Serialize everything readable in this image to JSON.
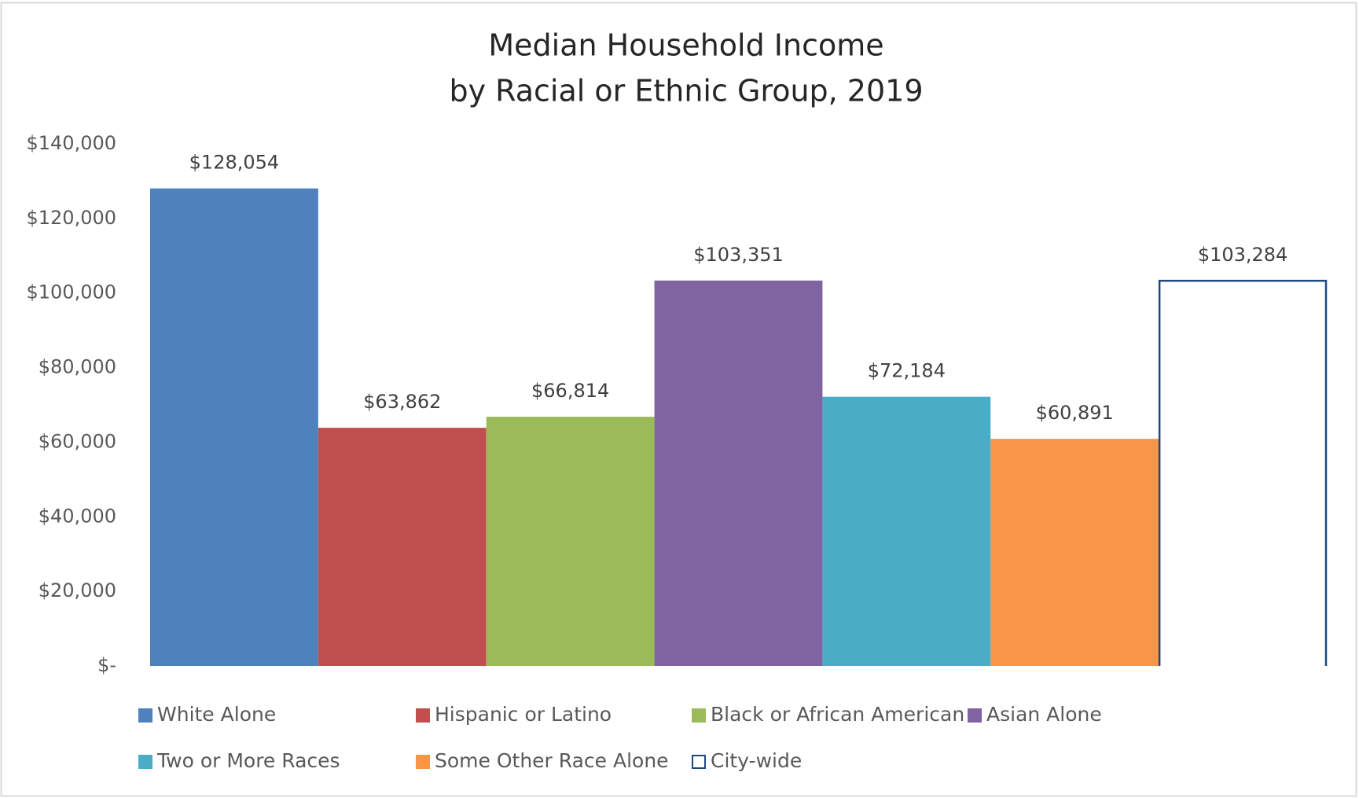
{
  "chart_data": {
    "type": "bar",
    "title": [
      "Median Household Income",
      "by Racial or Ethnic Group, 2019"
    ],
    "categories": [
      null
    ],
    "series": [
      {
        "name": "White Alone",
        "color": "#4f81bd",
        "values": [
          128054
        ],
        "value_labels": [
          "$128,054"
        ]
      },
      {
        "name": "Hispanic or Latino",
        "color": "#c0504d",
        "values": [
          63862
        ],
        "value_labels": [
          "$63,862"
        ]
      },
      {
        "name": "Black or African American",
        "color": "#9bbb59",
        "values": [
          66814
        ],
        "value_labels": [
          "$66,814"
        ]
      },
      {
        "name": "Asian Alone",
        "color": "#8064a2",
        "values": [
          103351
        ],
        "value_labels": [
          "$103,351"
        ]
      },
      {
        "name": "Two or More Races",
        "color": "#4bacc6",
        "values": [
          72184
        ],
        "value_labels": [
          "$72,184"
        ]
      },
      {
        "name": "Some Other Race Alone",
        "color": "#f79646",
        "values": [
          60891
        ],
        "value_labels": [
          "$60,891"
        ]
      },
      {
        "name": "City-wide",
        "color": "#1f497d",
        "fill": "none",
        "values": [
          103284
        ],
        "value_labels": [
          "$103,284"
        ]
      }
    ],
    "ylim": [
      0,
      140000
    ],
    "yticks": [
      {
        "value": 0,
        "label": "$-"
      },
      {
        "value": 20000,
        "label": "$20,000"
      },
      {
        "value": 40000,
        "label": "$40,000"
      },
      {
        "value": 60000,
        "label": "$60,000"
      },
      {
        "value": 80000,
        "label": "$80,000"
      },
      {
        "value": 100000,
        "label": "$100,000"
      },
      {
        "value": 120000,
        "label": "$120,000"
      },
      {
        "value": 140000,
        "label": "$140,000"
      }
    ],
    "grid": false,
    "legend": "bottom"
  }
}
